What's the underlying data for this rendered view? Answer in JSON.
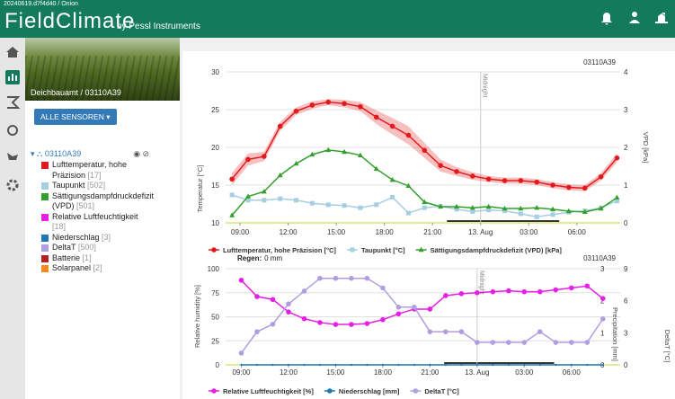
{
  "header": {
    "build": "20240619.d7f4d40 / Onion",
    "logo": "FieldClimate",
    "logo_sub": "by Pessl Instruments"
  },
  "sidebar": {
    "station": "Deichbauamt / 03110A39",
    "button": "ALLE SENSOREN",
    "tree_root": "03110A39",
    "sensors": [
      {
        "name": "Lufttemperatur, hohe Präzision",
        "code": "[17]",
        "color": "#e31a1c"
      },
      {
        "name": "Taupunkt",
        "code": "[502]",
        "color": "#a6cee3"
      },
      {
        "name": "Sättigungsdampfdruckdefizit (VPD)",
        "code": "[501]",
        "color": "#33a02c"
      },
      {
        "name": "Relative Luftfeuchtigkeit",
        "code": "[18]",
        "color": "#e61ee6"
      },
      {
        "name": "Niederschlag",
        "code": "[3]",
        "color": "#1f78b4"
      },
      {
        "name": "DeltaT",
        "code": "[500]",
        "color": "#b09ee0"
      },
      {
        "name": "Batterie",
        "code": "[1]",
        "color": "#b22222"
      },
      {
        "name": "Solarpanel",
        "code": "[2]",
        "color": "#f08c1e"
      }
    ]
  },
  "chart_data": [
    {
      "type": "line",
      "station": "03110A39",
      "annotation": "Midnight",
      "annotation_x": 24,
      "night": [
        21.9,
        28.9
      ],
      "y_label": "Temperatur [°C]",
      "y2_label": "VPD [kPa]",
      "x": [
        8.5,
        9.5,
        10.5,
        11.5,
        12.5,
        13.5,
        14.5,
        15.5,
        16.5,
        17.5,
        18.5,
        19.5,
        20.5,
        21.5,
        22.5,
        23.5,
        24.5,
        25.5,
        26.5,
        27.5,
        28.5,
        29.5,
        30.5,
        31.5,
        32.5
      ],
      "xlim": [
        8.1,
        32.7
      ],
      "xticks": [
        {
          "value": 9,
          "label": "09:00"
        },
        {
          "value": 12,
          "label": "12:00"
        },
        {
          "value": 15,
          "label": "15:00"
        },
        {
          "value": 18,
          "label": "18:00"
        },
        {
          "value": 21,
          "label": "21:00"
        },
        {
          "value": 24,
          "label": "13. Aug"
        },
        {
          "value": 27,
          "label": "03:00"
        },
        {
          "value": 30,
          "label": "06:00"
        }
      ],
      "ylim": [
        10,
        30
      ],
      "yticks": [
        10,
        15,
        20,
        25,
        30
      ],
      "y2lim": [
        0,
        4
      ],
      "y2ticks": [
        0,
        1,
        2,
        3,
        4
      ],
      "grid": true,
      "series": [
        {
          "name": "Lufttemperatur, hohe Präzision [°C]",
          "color": "#e31a1c",
          "marker": "circle",
          "axis": "y",
          "values": [
            15.8,
            18.4,
            18.8,
            22.8,
            24.8,
            25.6,
            26.0,
            25.8,
            25.4,
            24.0,
            22.8,
            21.6,
            19.6,
            17.6,
            16.8,
            16.2,
            15.8,
            15.6,
            15.6,
            15.4,
            15.0,
            14.7,
            14.6,
            16.1,
            18.6
          ],
          "min": [
            15.0,
            17.6,
            18.2,
            22.2,
            24.3,
            25.1,
            25.6,
            25.3,
            24.8,
            23.1,
            21.7,
            20.4,
            18.6,
            16.8,
            16.2,
            15.7,
            15.4,
            15.2,
            15.2,
            15.0,
            14.6,
            14.3,
            14.2,
            15.6,
            18.0
          ],
          "max": [
            16.6,
            19.2,
            19.4,
            23.4,
            25.3,
            26.1,
            26.4,
            26.3,
            26.0,
            24.9,
            23.9,
            22.8,
            20.6,
            18.4,
            17.4,
            16.7,
            16.2,
            16.0,
            16.0,
            15.8,
            15.4,
            15.1,
            15.0,
            16.6,
            19.2
          ]
        },
        {
          "name": "Taupunkt [°C]",
          "color": "#a6cee3",
          "marker": "square",
          "axis": "y",
          "values": [
            13.7,
            13.0,
            13.0,
            13.2,
            13.0,
            12.6,
            12.4,
            12.3,
            12.0,
            12.4,
            13.4,
            11.3,
            12.0,
            12.2,
            11.8,
            11.5,
            11.7,
            11.6,
            11.2,
            10.8,
            11.1,
            11.4,
            11.6,
            12.0,
            12.9
          ]
        },
        {
          "name": "Sättigungsdampfdruckdefizit (VPD) [kPa]",
          "color": "#33a02c",
          "marker": "triangle",
          "axis": "y2",
          "values": [
            0.2,
            0.7,
            0.83,
            1.26,
            1.57,
            1.81,
            1.93,
            1.88,
            1.79,
            1.43,
            1.14,
            0.98,
            0.55,
            0.43,
            0.43,
            0.4,
            0.43,
            0.38,
            0.38,
            0.4,
            0.36,
            0.31,
            0.29,
            0.38,
            0.67
          ]
        }
      ]
    },
    {
      "type": "line",
      "station": "03110A39",
      "annotation": "Midnight",
      "annotation_x": 24,
      "night": [
        21.9,
        28.9
      ],
      "precip_label": "Regen:",
      "precip_total": "0 mm",
      "y_label": "Relative humidity [%]",
      "y2_label": "Precipitation [mm]",
      "y3_label": "DeltaT [°C]",
      "x": [
        9,
        10,
        11,
        12,
        13,
        14,
        15,
        16,
        17,
        18,
        19,
        20,
        21,
        22,
        23,
        24,
        25,
        26,
        27,
        28,
        29,
        30,
        31,
        32
      ],
      "xlim": [
        8.0,
        33.1
      ],
      "xticks": [
        {
          "value": 9,
          "label": "09:00"
        },
        {
          "value": 12,
          "label": "12:00"
        },
        {
          "value": 15,
          "label": "15:00"
        },
        {
          "value": 18,
          "label": "18:00"
        },
        {
          "value": 21,
          "label": "21:00"
        },
        {
          "value": 24,
          "label": "13. Aug"
        },
        {
          "value": 27,
          "label": "03:00"
        },
        {
          "value": 30,
          "label": "06:00"
        }
      ],
      "ylim": [
        0,
        100
      ],
      "yticks": [
        0,
        25,
        50,
        75,
        100
      ],
      "y2lim": [
        0,
        3
      ],
      "y2ticks": [
        0,
        1,
        2,
        3
      ],
      "y3lim": [
        0,
        9
      ],
      "y3ticks": [
        0,
        3,
        6,
        9
      ],
      "grid": true,
      "series": [
        {
          "name": "Relative Luftfeuchtigkeit [%]",
          "color": "#e61ee6",
          "marker": "circle",
          "axis": "y",
          "values": [
            88,
            71,
            68,
            55,
            48,
            44,
            42,
            42,
            43,
            47,
            53,
            58,
            58,
            72,
            74,
            75,
            76,
            77,
            76,
            76,
            78,
            80,
            82,
            69
          ]
        },
        {
          "name": "Niederschlag [mm]",
          "color": "#1f78b4",
          "marker": "dot",
          "axis": "y2",
          "values": [
            0,
            0,
            0,
            0,
            0,
            0,
            0,
            0,
            0,
            0,
            0,
            0,
            0,
            0,
            0,
            0,
            0,
            0,
            0,
            0,
            0,
            0,
            0,
            0
          ]
        },
        {
          "name": "DeltaT [°C]",
          "color": "#b09ee0",
          "marker": "circle",
          "axis": "y3",
          "values": [
            1.1,
            3.1,
            3.8,
            5.7,
            6.9,
            8.1,
            8.1,
            8.1,
            8.1,
            7.2,
            5.4,
            5.4,
            3.1,
            3.1,
            3.1,
            2.1,
            2.1,
            2.1,
            2.1,
            3.1,
            2.1,
            2.1,
            2.1,
            4.3
          ]
        }
      ]
    }
  ]
}
